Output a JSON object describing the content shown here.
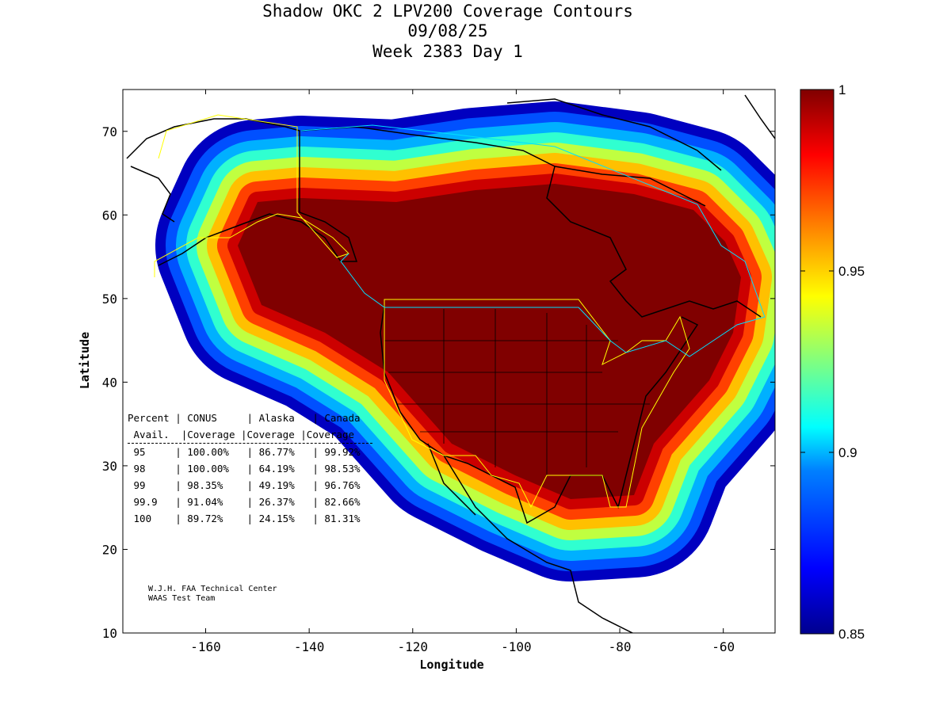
{
  "title": {
    "line1": "Shadow OKC 2 LPV200 Coverage Contours",
    "line2": "09/08/25",
    "line3": "Week 2383 Day 1"
  },
  "chart_data": {
    "type": "heatmap",
    "title": "Shadow OKC 2 LPV200 Coverage Contours",
    "xlabel": "Longitude",
    "ylabel": "Latitude",
    "xlim": [
      -176,
      -50
    ],
    "ylim": [
      10,
      75
    ],
    "xticks": [
      "-160",
      "-140",
      "-120",
      "-100",
      "-80",
      "-60"
    ],
    "yticks": [
      "70",
      "60",
      "50",
      "40",
      "30",
      "20",
      "10"
    ],
    "colorbar": {
      "range": [
        0.85,
        1
      ],
      "ticks": [
        "1",
        "0.95",
        "0.9",
        "0.85"
      ],
      "colormap": [
        "#00008f",
        "#0000ff",
        "#0080ff",
        "#00ffff",
        "#80ff80",
        "#ffff00",
        "#ff8000",
        "#ff0000",
        "#800000"
      ]
    },
    "contour_levels": [
      0.86,
      0.88,
      0.9,
      0.92,
      0.94,
      0.96,
      0.98,
      0.99,
      1.0
    ],
    "contour_colors": [
      "#0000c0",
      "#0050ff",
      "#00b0ff",
      "#30ffd0",
      "#c0ff40",
      "#ffc000",
      "#ff4000",
      "#cc0000",
      "#800000"
    ]
  },
  "table": {
    "header1": [
      "Percent",
      "CONUS",
      "Alaska",
      "Canada"
    ],
    "header2": [
      "Avail.",
      "Coverage",
      "Coverage",
      "Coverage"
    ],
    "rows": [
      [
        "95",
        "100.00%",
        "86.77%",
        "99.92%"
      ],
      [
        "98",
        "100.00%",
        "64.19%",
        "98.53%"
      ],
      [
        "99",
        "98.35%",
        "49.19%",
        "96.76%"
      ],
      [
        "99.9",
        "91.04%",
        "26.37%",
        "82.66%"
      ],
      [
        "100",
        "89.72%",
        "24.15%",
        "81.31%"
      ]
    ]
  },
  "credits": {
    "line1": "W.J.H. FAA Technical Center",
    "line2": "WAAS Test Team"
  }
}
